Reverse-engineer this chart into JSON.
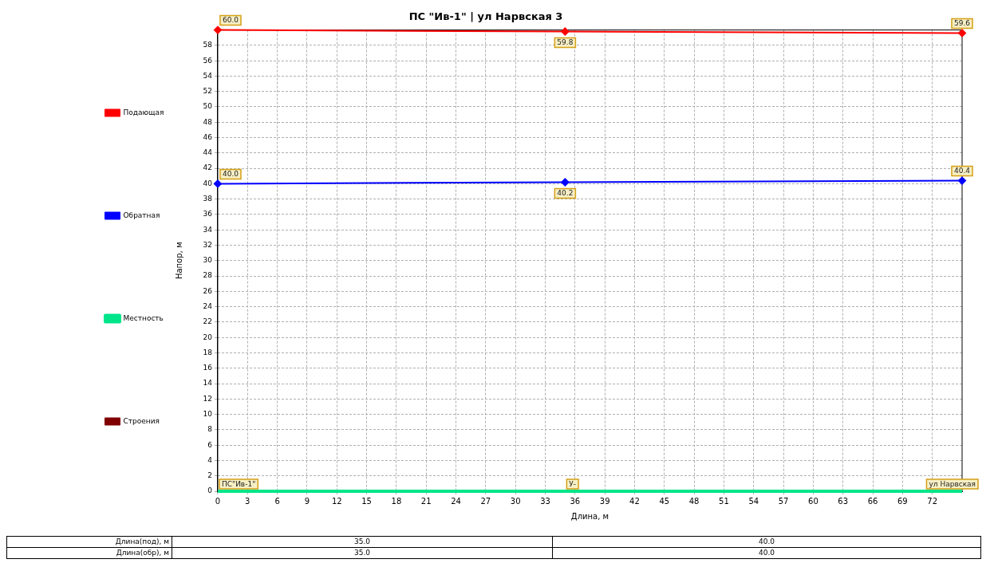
{
  "chart_data": {
    "type": "line",
    "title": "ПС \"Ив-1\" | ул Нарвская 3",
    "xlabel": "Длина, м",
    "ylabel": "Напор, м",
    "x": [
      0,
      35,
      75
    ],
    "series": [
      {
        "name": "Подающая",
        "color": "#ff0000",
        "values": [
          60.0,
          59.8,
          59.6
        ],
        "value_labels": [
          "60.0",
          "59.8",
          "59.6"
        ]
      },
      {
        "name": "Обратная",
        "color": "#0000ff",
        "values": [
          40.0,
          40.2,
          40.4
        ],
        "value_labels": [
          "40.0",
          "40.2",
          "40.4"
        ]
      },
      {
        "name": "Местность",
        "color": "#00e58a",
        "values": [
          0,
          0,
          0
        ],
        "marker": "none"
      },
      {
        "name": "Строения",
        "color": "#800000",
        "values": [
          null,
          null,
          null
        ],
        "marker": "none"
      }
    ],
    "xlim": [
      0,
      75
    ],
    "xticks": [
      0,
      3,
      6,
      9,
      12,
      15,
      18,
      21,
      24,
      27,
      30,
      33,
      36,
      39,
      42,
      45,
      48,
      51,
      54,
      57,
      60,
      63,
      66,
      69,
      72
    ],
    "ylim": [
      0,
      60
    ],
    "yticks": [
      0,
      2,
      4,
      6,
      8,
      10,
      12,
      14,
      16,
      18,
      20,
      22,
      24,
      26,
      28,
      30,
      32,
      34,
      36,
      38,
      40,
      42,
      44,
      46,
      48,
      50,
      52,
      54,
      56,
      58
    ],
    "grid": true,
    "legend": "left",
    "marker": "diamond",
    "line_style": "solid",
    "annotations": [
      {
        "text": "ПС\"Ив-1\"",
        "x": 0,
        "y": 0
      },
      {
        "text": "У-",
        "x": 35,
        "y": 0
      },
      {
        "text": "ул Нарвская",
        "x": 75,
        "y": 0
      },
      "Длина(под), м",
      "35.0",
      "40.0",
      "Длина(обр), м",
      "35.0",
      "40.0"
    ]
  }
}
